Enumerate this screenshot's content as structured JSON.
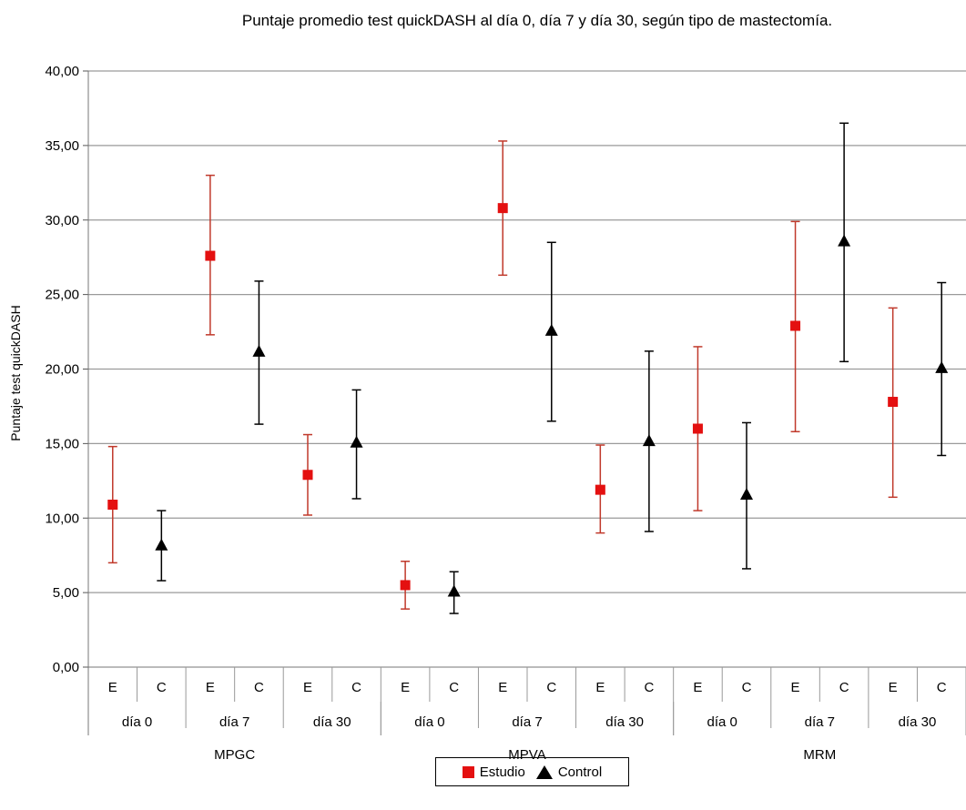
{
  "chart_data": {
    "type": "scatter",
    "title": "Puntaje promedio test quickDASH al día 0, día 7 y día 30, según tipo de mastectomía.",
    "ylabel": "Puntaje test quickDASH",
    "xlabel": "",
    "ylim": [
      0,
      40
    ],
    "yticks": [
      "0,00",
      "5,00",
      "10,00",
      "15,00",
      "20,00",
      "25,00",
      "30,00",
      "35,00",
      "40,00"
    ],
    "grid": true,
    "legend_position": "bottom",
    "groups": [
      "MPGC",
      "MPVA",
      "MRM"
    ],
    "days": [
      "día 0",
      "día 7",
      "día 30"
    ],
    "subcategories": [
      "E",
      "C"
    ],
    "series": [
      {
        "name": "Estudio",
        "color": "#e41010",
        "marker": "square",
        "points": [
          {
            "group": "MPGC",
            "day": "día 0",
            "y": 10.9,
            "low": 7.0,
            "high": 14.8
          },
          {
            "group": "MPGC",
            "day": "día 7",
            "y": 27.6,
            "low": 22.3,
            "high": 33.0
          },
          {
            "group": "MPGC",
            "day": "día 30",
            "y": 12.9,
            "low": 10.2,
            "high": 15.6
          },
          {
            "group": "MPVA",
            "day": "día 0",
            "y": 5.5,
            "low": 3.9,
            "high": 7.1
          },
          {
            "group": "MPVA",
            "day": "día 7",
            "y": 30.8,
            "low": 26.3,
            "high": 35.3
          },
          {
            "group": "MPVA",
            "day": "día 30",
            "y": 11.9,
            "low": 9.0,
            "high": 14.9
          },
          {
            "group": "MRM",
            "day": "día 0",
            "y": 16.0,
            "low": 10.5,
            "high": 21.5
          },
          {
            "group": "MRM",
            "day": "día 7",
            "y": 22.9,
            "low": 15.8,
            "high": 29.9
          },
          {
            "group": "MRM",
            "day": "día 30",
            "y": 17.8,
            "low": 11.4,
            "high": 24.1
          }
        ]
      },
      {
        "name": "Control",
        "color": "#000000",
        "marker": "triangle",
        "points": [
          {
            "group": "MPGC",
            "day": "día 0",
            "y": 8.2,
            "low": 5.8,
            "high": 10.5
          },
          {
            "group": "MPGC",
            "day": "día 7",
            "y": 21.2,
            "low": 16.3,
            "high": 25.9
          },
          {
            "group": "MPGC",
            "day": "día 30",
            "y": 15.1,
            "low": 11.3,
            "high": 18.6
          },
          {
            "group": "MPVA",
            "day": "día 0",
            "y": 5.1,
            "low": 3.6,
            "high": 6.4
          },
          {
            "group": "MPVA",
            "day": "día 7",
            "y": 22.6,
            "low": 16.5,
            "high": 28.5
          },
          {
            "group": "MPVA",
            "day": "día 30",
            "y": 15.2,
            "low": 9.1,
            "high": 21.2
          },
          {
            "group": "MRM",
            "day": "día 0",
            "y": 11.6,
            "low": 6.6,
            "high": 16.4
          },
          {
            "group": "MRM",
            "day": "día 7",
            "y": 28.6,
            "low": 20.5,
            "high": 36.5
          },
          {
            "group": "MRM",
            "day": "día 30",
            "y": 20.1,
            "low": 14.2,
            "high": 25.8
          }
        ]
      }
    ]
  }
}
